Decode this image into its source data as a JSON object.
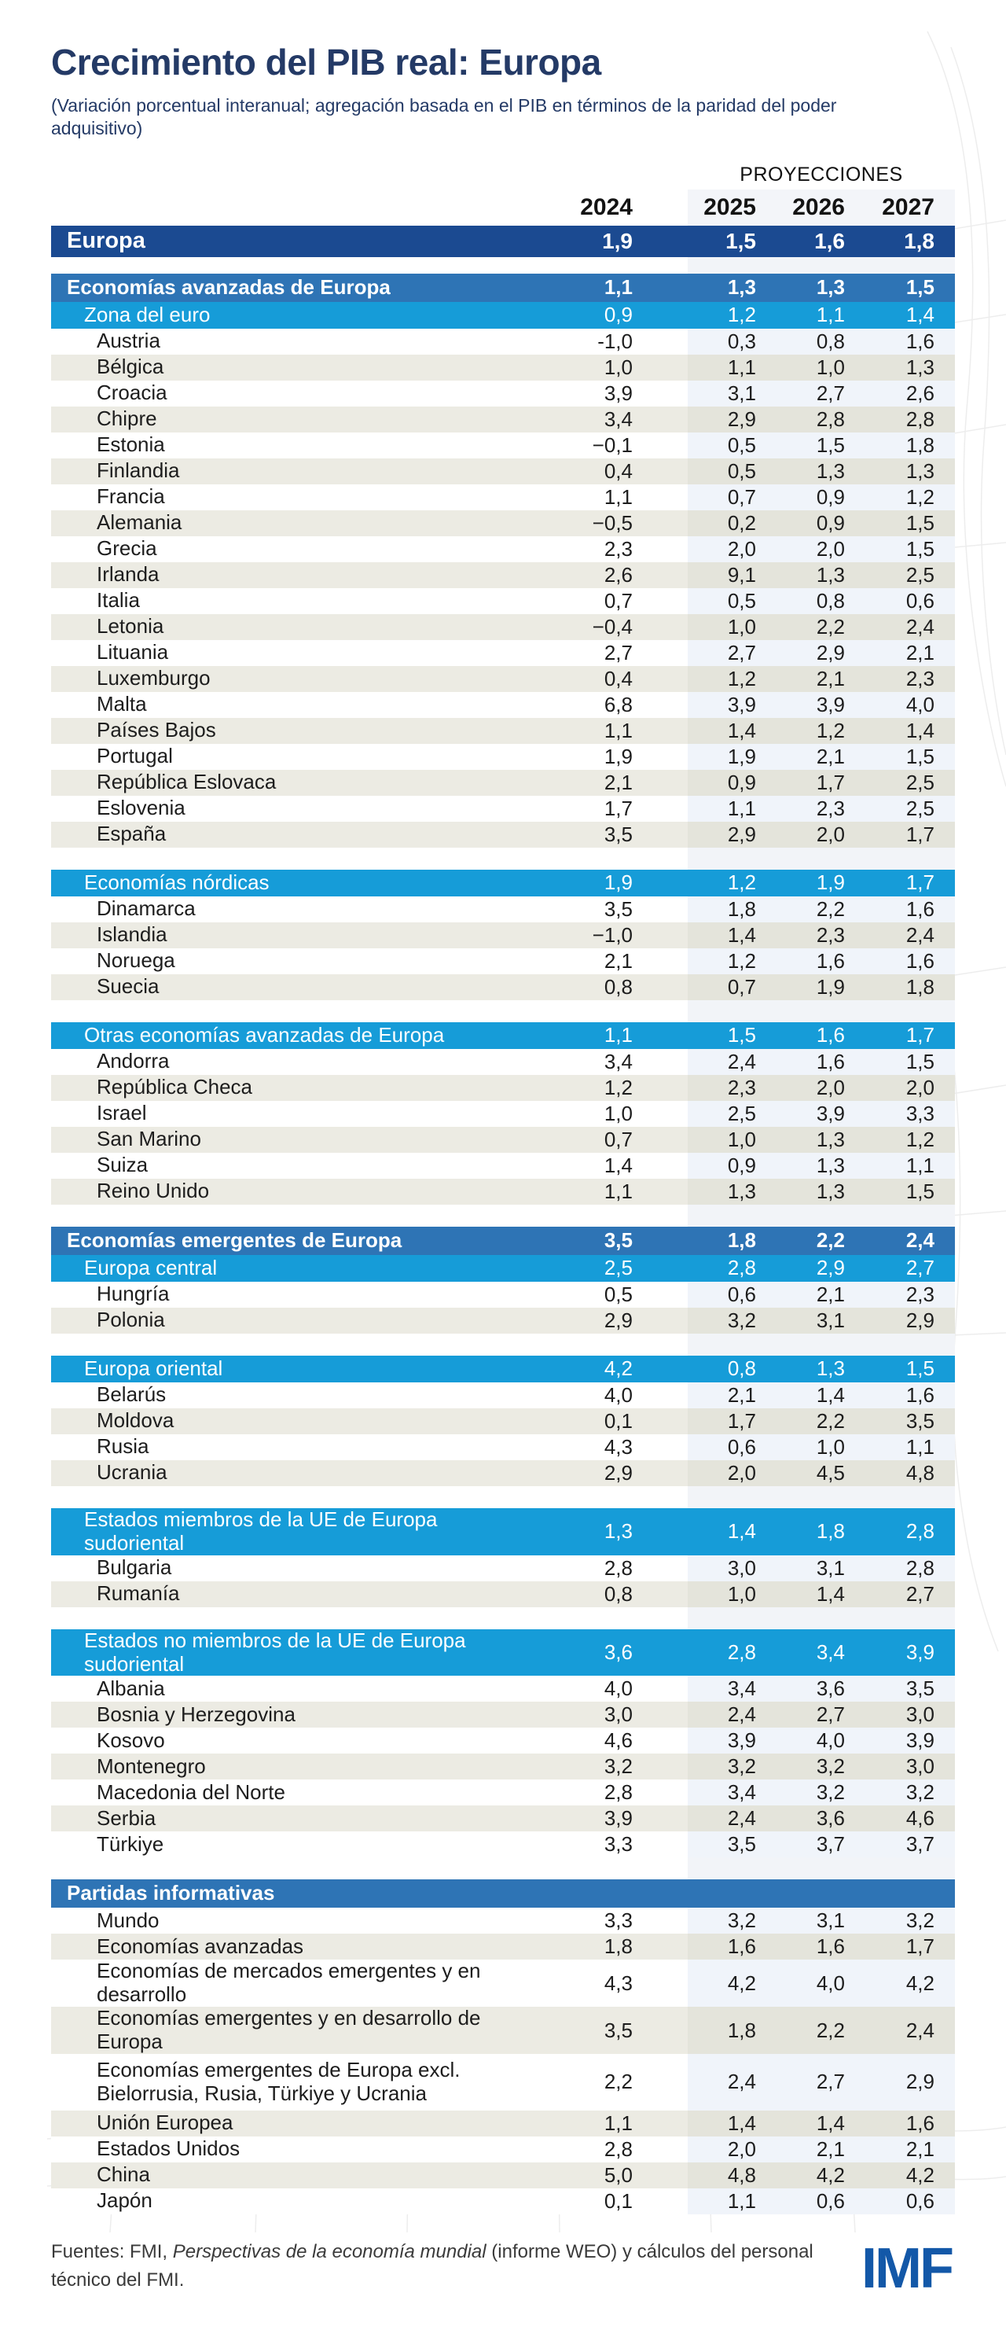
{
  "title": "Crecimiento del PIB real: Europa",
  "subtitle": "(Variación porcentual interanual; agregación basada en el PIB en términos de la paridad del poder adquisitivo)",
  "projections_label": "PROYECCIONES",
  "years": [
    "2024",
    "2025",
    "2026",
    "2027"
  ],
  "footer": {
    "prefix": "Fuentes: FMI, ",
    "italic": "Perspectivas de la economía mundial",
    "suffix": " (informe WEO) y cálculos del personal técnico del FMI."
  },
  "logo_text": "IMF",
  "colors": {
    "total_row": "#1b4a91",
    "group_row": "#2e74b5",
    "subgroup_row": "#169cd8",
    "beige_row": "#ecebe3",
    "projection_band_on_white": "#f0f4fa",
    "projection_band_on_beige": "#e4e4db",
    "projection_band_header": "#f3f5f9",
    "title_navy": "#243a66",
    "imf_logo_blue": "#1358a8"
  },
  "chart_data": {
    "type": "table",
    "title": "Crecimiento del PIB real: Europa",
    "columns": [
      "2024",
      "2025",
      "2026",
      "2027"
    ],
    "projected_columns": [
      "2025",
      "2026",
      "2027"
    ],
    "decimal_style": "comma",
    "rows": [
      {
        "label": "Europa",
        "kind": "total",
        "values": [
          "1,9",
          "1,5",
          "1,6",
          "1,8"
        ]
      },
      {
        "label": "Economías avanzadas de Europa",
        "kind": "group",
        "gap_before": true,
        "values": [
          "1,1",
          "1,3",
          "1,3",
          "1,5"
        ]
      },
      {
        "label": "Zona del euro",
        "kind": "subgroup",
        "values": [
          "0,9",
          "1,2",
          "1,1",
          "1,4"
        ]
      },
      {
        "label": "Austria",
        "kind": "item",
        "shade": "white",
        "values": [
          "-1,0",
          "0,3",
          "0,8",
          "1,6"
        ]
      },
      {
        "label": "Bélgica",
        "kind": "item",
        "shade": "beige",
        "values": [
          "1,0",
          "1,1",
          "1,0",
          "1,3"
        ]
      },
      {
        "label": "Croacia",
        "kind": "item",
        "shade": "white",
        "values": [
          "3,9",
          "3,1",
          "2,7",
          "2,6"
        ]
      },
      {
        "label": "Chipre",
        "kind": "item",
        "shade": "beige",
        "values": [
          "3,4",
          "2,9",
          "2,8",
          "2,8"
        ]
      },
      {
        "label": "Estonia",
        "kind": "item",
        "shade": "white",
        "values": [
          "−0,1",
          "0,5",
          "1,5",
          "1,8"
        ]
      },
      {
        "label": "Finlandia",
        "kind": "item",
        "shade": "beige",
        "values": [
          "0,4",
          "0,5",
          "1,3",
          "1,3"
        ]
      },
      {
        "label": "Francia",
        "kind": "item",
        "shade": "white",
        "values": [
          "1,1",
          "0,7",
          "0,9",
          "1,2"
        ]
      },
      {
        "label": "Alemania",
        "kind": "item",
        "shade": "beige",
        "values": [
          "−0,5",
          "0,2",
          "0,9",
          "1,5"
        ]
      },
      {
        "label": "Grecia",
        "kind": "item",
        "shade": "white",
        "values": [
          "2,3",
          "2,0",
          "2,0",
          "1,5"
        ]
      },
      {
        "label": "Irlanda",
        "kind": "item",
        "shade": "beige",
        "values": [
          "2,6",
          "9,1",
          "1,3",
          "2,5"
        ]
      },
      {
        "label": "Italia",
        "kind": "item",
        "shade": "white",
        "values": [
          "0,7",
          "0,5",
          "0,8",
          "0,6"
        ]
      },
      {
        "label": "Letonia",
        "kind": "item",
        "shade": "beige",
        "values": [
          "−0,4",
          "1,0",
          "2,2",
          "2,4"
        ]
      },
      {
        "label": "Lituania",
        "kind": "item",
        "shade": "white",
        "values": [
          "2,7",
          "2,7",
          "2,9",
          "2,1"
        ]
      },
      {
        "label": "Luxemburgo",
        "kind": "item",
        "shade": "beige",
        "values": [
          "0,4",
          "1,2",
          "2,1",
          "2,3"
        ]
      },
      {
        "label": "Malta",
        "kind": "item",
        "shade": "white",
        "values": [
          "6,8",
          "3,9",
          "3,9",
          "4,0"
        ]
      },
      {
        "label": "Países Bajos",
        "kind": "item",
        "shade": "beige",
        "values": [
          "1,1",
          "1,4",
          "1,2",
          "1,4"
        ]
      },
      {
        "label": "Portugal",
        "kind": "item",
        "shade": "white",
        "values": [
          "1,9",
          "1,9",
          "2,1",
          "1,5"
        ]
      },
      {
        "label": "República Eslovaca",
        "kind": "item",
        "shade": "beige",
        "values": [
          "2,1",
          "0,9",
          "1,7",
          "2,5"
        ]
      },
      {
        "label": "Eslovenia",
        "kind": "item",
        "shade": "white",
        "values": [
          "1,7",
          "1,1",
          "2,3",
          "2,5"
        ]
      },
      {
        "label": "España",
        "kind": "item",
        "shade": "beige",
        "values": [
          "3,5",
          "2,9",
          "2,0",
          "1,7"
        ]
      },
      {
        "label": "Economías nórdicas",
        "kind": "subgroup",
        "gap_before": true,
        "values": [
          "1,9",
          "1,2",
          "1,9",
          "1,7"
        ]
      },
      {
        "label": "Dinamarca",
        "kind": "item",
        "shade": "white",
        "values": [
          "3,5",
          "1,8",
          "2,2",
          "1,6"
        ]
      },
      {
        "label": "Islandia",
        "kind": "item",
        "shade": "beige",
        "values": [
          "−1,0",
          "1,4",
          "2,3",
          "2,4"
        ]
      },
      {
        "label": "Noruega",
        "kind": "item",
        "shade": "white",
        "values": [
          "2,1",
          "1,2",
          "1,6",
          "1,6"
        ]
      },
      {
        "label": "Suecia",
        "kind": "item",
        "shade": "beige",
        "values": [
          "0,8",
          "0,7",
          "1,9",
          "1,8"
        ]
      },
      {
        "label": "Otras economías avanzadas de Europa",
        "kind": "subgroup",
        "gap_before": true,
        "values": [
          "1,1",
          "1,5",
          "1,6",
          "1,7"
        ]
      },
      {
        "label": "Andorra",
        "kind": "item",
        "shade": "white",
        "values": [
          "3,4",
          "2,4",
          "1,6",
          "1,5"
        ]
      },
      {
        "label": "República Checa",
        "kind": "item",
        "shade": "beige",
        "values": [
          "1,2",
          "2,3",
          "2,0",
          "2,0"
        ]
      },
      {
        "label": "Israel",
        "kind": "item",
        "shade": "white",
        "values": [
          "1,0",
          "2,5",
          "3,9",
          "3,3"
        ]
      },
      {
        "label": "San Marino",
        "kind": "item",
        "shade": "beige",
        "values": [
          "0,7",
          "1,0",
          "1,3",
          "1,2"
        ]
      },
      {
        "label": "Suiza",
        "kind": "item",
        "shade": "white",
        "values": [
          "1,4",
          "0,9",
          "1,3",
          "1,1"
        ]
      },
      {
        "label": "Reino Unido",
        "kind": "item",
        "shade": "beige",
        "values": [
          "1,1",
          "1,3",
          "1,3",
          "1,5"
        ]
      },
      {
        "label": "Economías emergentes de Europa",
        "kind": "group",
        "gap_before": true,
        "values": [
          "3,5",
          "1,8",
          "2,2",
          "2,4"
        ]
      },
      {
        "label": "Europa central",
        "kind": "subgroup",
        "values": [
          "2,5",
          "2,8",
          "2,9",
          "2,7"
        ]
      },
      {
        "label": "Hungría",
        "kind": "item",
        "shade": "white",
        "values": [
          "0,5",
          "0,6",
          "2,1",
          "2,3"
        ]
      },
      {
        "label": "Polonia",
        "kind": "item",
        "shade": "beige",
        "values": [
          "2,9",
          "3,2",
          "3,1",
          "2,9"
        ]
      },
      {
        "label": "Europa oriental",
        "kind": "subgroup",
        "gap_before": true,
        "values": [
          "4,2",
          "0,8",
          "1,3",
          "1,5"
        ]
      },
      {
        "label": "Belarús",
        "kind": "item",
        "shade": "white",
        "values": [
          "4,0",
          "2,1",
          "1,4",
          "1,6"
        ]
      },
      {
        "label": "Moldova",
        "kind": "item",
        "shade": "beige",
        "values": [
          "0,1",
          "1,7",
          "2,2",
          "3,5"
        ]
      },
      {
        "label": "Rusia",
        "kind": "item",
        "shade": "white",
        "values": [
          "4,3",
          "0,6",
          "1,0",
          "1,1"
        ]
      },
      {
        "label": "Ucrania",
        "kind": "item",
        "shade": "beige",
        "values": [
          "2,9",
          "2,0",
          "4,5",
          "4,8"
        ]
      },
      {
        "label": "Estados miembros de la UE de Europa sudoriental",
        "kind": "subgroup",
        "gap_before": true,
        "values": [
          "1,3",
          "1,4",
          "1,8",
          "2,8"
        ]
      },
      {
        "label": "Bulgaria",
        "kind": "item",
        "shade": "white",
        "values": [
          "2,8",
          "3,0",
          "3,1",
          "2,8"
        ]
      },
      {
        "label": "Rumanía",
        "kind": "item",
        "shade": "beige",
        "values": [
          "0,8",
          "1,0",
          "1,4",
          "2,7"
        ]
      },
      {
        "label": "Estados no miembros de la UE de Europa sudoriental",
        "kind": "subgroup",
        "gap_before": true,
        "values": [
          "3,6",
          "2,8",
          "3,4",
          "3,9"
        ]
      },
      {
        "label": "Albania",
        "kind": "item",
        "shade": "white",
        "values": [
          "4,0",
          "3,4",
          "3,6",
          "3,5"
        ]
      },
      {
        "label": "Bosnia y Herzegovina",
        "kind": "item",
        "shade": "beige",
        "values": [
          "3,0",
          "2,4",
          "2,7",
          "3,0"
        ]
      },
      {
        "label": "Kosovo",
        "kind": "item",
        "shade": "white",
        "values": [
          "4,6",
          "3,9",
          "4,0",
          "3,9"
        ]
      },
      {
        "label": "Montenegro",
        "kind": "item",
        "shade": "beige",
        "values": [
          "3,2",
          "3,2",
          "3,2",
          "3,0"
        ]
      },
      {
        "label": "Macedonia del Norte",
        "kind": "item",
        "shade": "white",
        "values": [
          "2,8",
          "3,4",
          "3,2",
          "3,2"
        ]
      },
      {
        "label": "Serbia",
        "kind": "item",
        "shade": "beige",
        "values": [
          "3,9",
          "2,4",
          "3,6",
          "4,6"
        ]
      },
      {
        "label": "Türkiye",
        "kind": "item",
        "shade": "white",
        "values": [
          "3,3",
          "3,5",
          "3,7",
          "3,7"
        ]
      },
      {
        "label": "Partidas informativas",
        "kind": "group",
        "gap_before": true,
        "values": null
      },
      {
        "label": "Mundo",
        "kind": "item",
        "shade": "white",
        "values": [
          "3,3",
          "3,2",
          "3,1",
          "3,2"
        ]
      },
      {
        "label": "Economías avanzadas",
        "kind": "item",
        "shade": "beige",
        "values": [
          "1,8",
          "1,6",
          "1,6",
          "1,7"
        ]
      },
      {
        "label": "Economías de mercados emergentes y en desarrollo",
        "kind": "item",
        "shade": "white",
        "values": [
          "4,3",
          "4,2",
          "4,0",
          "4,2"
        ]
      },
      {
        "label": "Economías emergentes y en desarrollo de Europa",
        "kind": "item",
        "shade": "beige",
        "values": [
          "3,5",
          "1,8",
          "2,2",
          "2,4"
        ]
      },
      {
        "label": "Economías emergentes de Europa excl. Bielorrusia, Rusia, Türkiye y Ucrania",
        "kind": "item",
        "shade": "white",
        "tall": true,
        "values": [
          "2,2",
          "2,4",
          "2,7",
          "2,9"
        ]
      },
      {
        "label": "Unión Europea",
        "kind": "item",
        "shade": "beige",
        "values": [
          "1,1",
          "1,4",
          "1,4",
          "1,6"
        ]
      },
      {
        "label": "Estados Unidos",
        "kind": "item",
        "shade": "white",
        "values": [
          "2,8",
          "2,0",
          "2,1",
          "2,1"
        ]
      },
      {
        "label": "China",
        "kind": "item",
        "shade": "beige",
        "values": [
          "5,0",
          "4,8",
          "4,2",
          "4,2"
        ]
      },
      {
        "label": "Japón",
        "kind": "item",
        "shade": "white",
        "values": [
          "0,1",
          "1,1",
          "0,6",
          "0,6"
        ]
      }
    ]
  }
}
